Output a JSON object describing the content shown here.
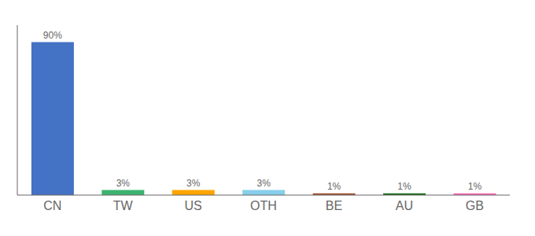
{
  "chart_data": {
    "type": "bar",
    "categories": [
      "CN",
      "TW",
      "US",
      "OTH",
      "BE",
      "AU",
      "GB"
    ],
    "values": [
      90,
      3,
      3,
      3,
      1,
      1,
      1
    ],
    "value_labels": [
      "90%",
      "3%",
      "3%",
      "3%",
      "1%",
      "1%",
      "1%"
    ],
    "colors": [
      "#4472C4",
      "#3CB371",
      "#FFA500",
      "#87CEEB",
      "#A0522D",
      "#1B6B1B",
      "#FF69B4"
    ],
    "ylim": [
      0,
      100
    ],
    "data_labels": true,
    "grid": false,
    "tick_labels": "x"
  }
}
